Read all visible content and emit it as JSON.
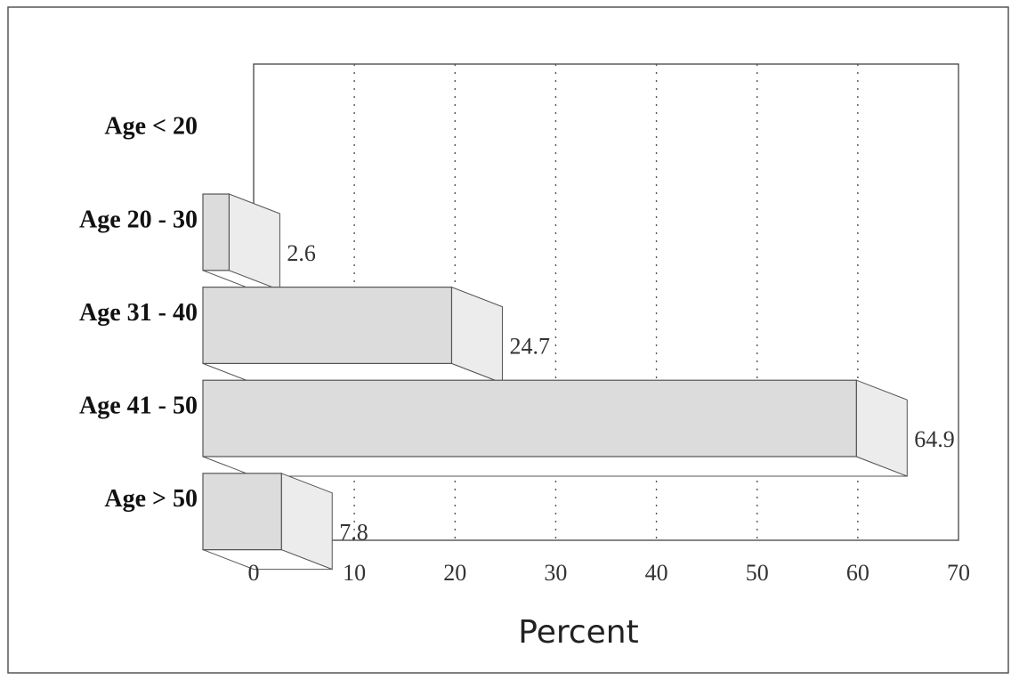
{
  "chart_data": {
    "type": "bar",
    "orientation": "horizontal",
    "style": "3d",
    "categories": [
      "Age < 20",
      "Age 20 - 30",
      "Age 31 - 40",
      "Age 41 - 50",
      "Age > 50"
    ],
    "values": [
      0,
      2.6,
      24.7,
      64.9,
      7.8
    ],
    "value_labels": [
      "",
      "2.6",
      "24.7",
      "64.9",
      "7.8"
    ],
    "xlabel": "Percent",
    "ylabel": "",
    "xlim": [
      0,
      70
    ],
    "xticks": [
      0,
      10,
      20,
      30,
      40,
      50,
      60,
      70
    ],
    "xtick_labels": [
      "0",
      "10",
      "20",
      "30",
      "40",
      "50",
      "60",
      "70"
    ],
    "grid": "vertical-dotted",
    "legend": "none",
    "colors": {
      "bar_front": "#dcdcdc",
      "bar_side": "#ececec",
      "bar_top": "#f4f4f4",
      "bar_stroke": "#555555",
      "grid": "#555555"
    }
  }
}
